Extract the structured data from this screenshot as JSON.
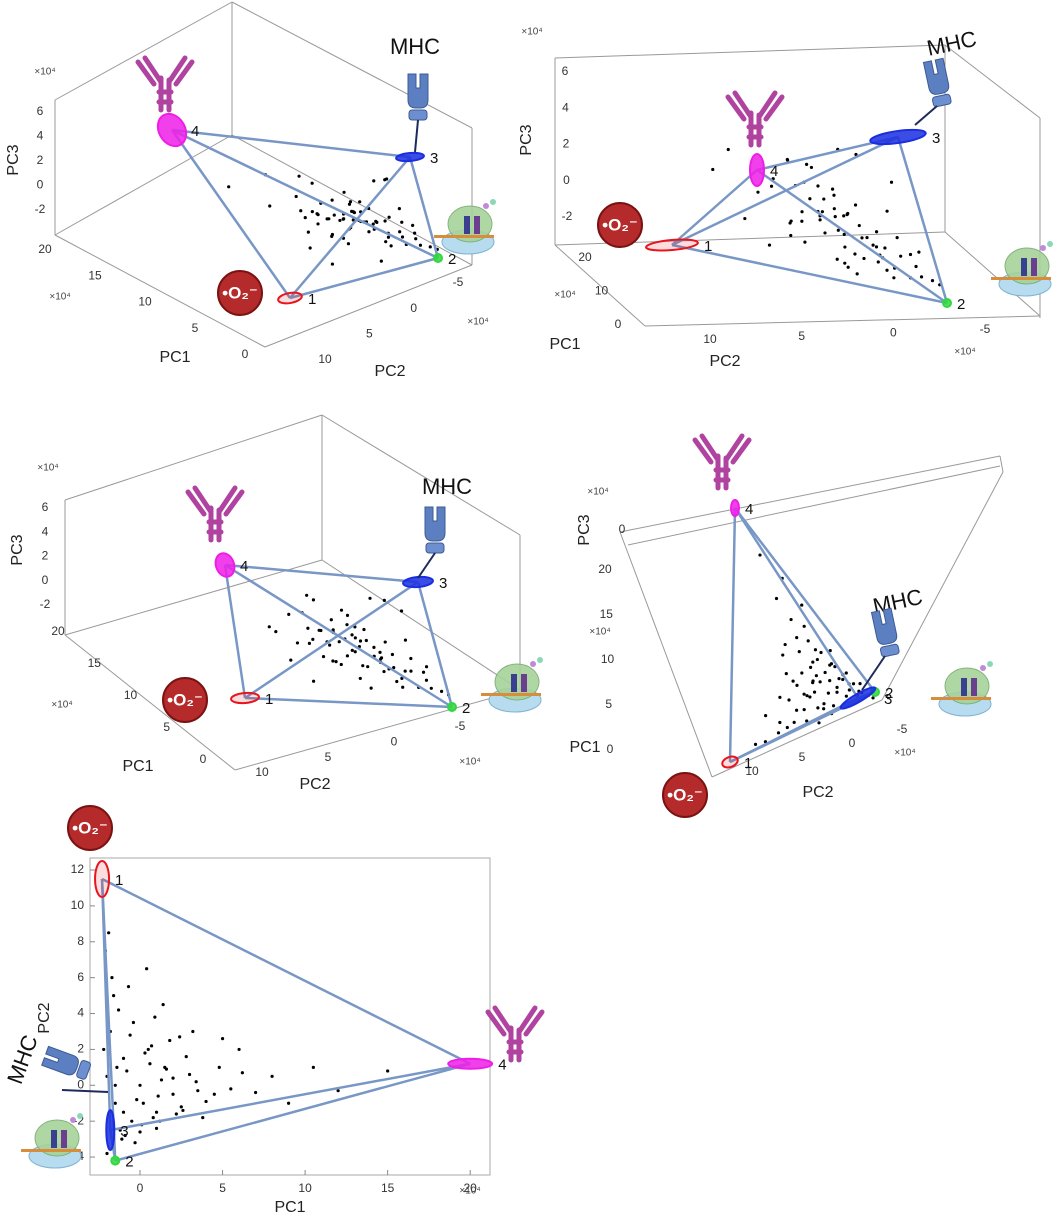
{
  "archetypes": {
    "labels": [
      "1",
      "2",
      "3",
      "4"
    ],
    "colors": [
      "#e8141e",
      "#32d840",
      "#1a2ee0",
      "#ee1ee8"
    ],
    "pc1": [
      -2.3,
      -1.5,
      -1.8,
      20
    ],
    "pc2": [
      11.5,
      -4.2,
      -2.5,
      1.2
    ],
    "pc3": [
      -1,
      -3,
      3,
      4.5
    ]
  },
  "samples": {
    "pc1": [
      -2.0,
      -1.5,
      -1.0,
      -0.5,
      0.0,
      0.5,
      1.0,
      1.5,
      2.0,
      -1.8,
      -1.2,
      -0.8,
      -0.2,
      0.3,
      0.8,
      1.3,
      1.8,
      2.5,
      3.0,
      3.5,
      -1.6,
      -1.1,
      -0.6,
      0.1,
      0.6,
      1.1,
      1.6,
      2.2,
      2.8,
      3.4,
      4.0,
      4.8,
      5.5,
      6.2,
      7.0,
      -2.1,
      -1.7,
      -1.3,
      -0.9,
      -0.4,
      0.2,
      0.7,
      1.2,
      2.0,
      2.6,
      -1.9,
      -1.4,
      -0.7,
      0.4,
      1.4,
      3.2,
      4.5,
      6.0,
      8.0,
      9.0,
      10.5,
      12.0,
      15.0,
      -2.2,
      -1.6,
      -1.0,
      0.0,
      1.0,
      2.4,
      -2.0,
      -1.5,
      -0.3,
      0.9,
      5.0,
      3.8
    ],
    "pc2": [
      0.5,
      -1.0,
      1.5,
      -2.0,
      0.0,
      2.0,
      -1.5,
      1.0,
      -0.5,
      3.0,
      -2.5,
      0.8,
      -0.8,
      1.8,
      -1.8,
      0.3,
      2.5,
      -1.2,
      0.6,
      -0.3,
      5.0,
      -3.0,
      2.8,
      -2.2,
      1.2,
      -0.6,
      0.9,
      -1.6,
      1.6,
      0.2,
      -0.9,
      1.0,
      -0.2,
      0.7,
      -0.4,
      7.5,
      6.0,
      4.2,
      -2.8,
      3.5,
      -1.0,
      2.2,
      -2.0,
      0.4,
      -1.4,
      8.5,
      1.0,
      5.5,
      6.5,
      4.5,
      3.0,
      -0.5,
      2.0,
      0.5,
      -1.0,
      1.0,
      -0.3,
      0.8,
      2.0,
      -3.5,
      -1.5,
      -2.6,
      -2.4,
      2.7,
      -3.8,
      0.0,
      -3.2,
      3.8,
      2.6,
      -1.8
    ],
    "pc3": [
      0.5,
      -1.0,
      1.2,
      -0.5,
      0.0,
      1.5,
      -1.5,
      0.8,
      -0.2,
      2.0,
      -1.2,
      0.3,
      -0.8,
      1.0,
      -1.8,
      0.6,
      1.8,
      -0.4,
      0.2,
      -0.6,
      1.5,
      -2.0,
      0.9,
      -1.1,
      0.4,
      -0.3,
      1.3,
      -0.9,
      0.7,
      0.1,
      -0.7,
      1.1,
      -0.1,
      0.5,
      -0.5,
      2.5,
      1.0,
      0.0,
      -1.6,
      1.4,
      -0.2,
      2.2,
      -1.4,
      0.6,
      -1.0,
      1.8,
      2.6,
      -0.8,
      0.3,
      1.6,
      2.8,
      -1.2,
      0.9,
      1.2,
      -0.4,
      0.7,
      2.0,
      1.5,
      -1.5,
      -2.2,
      0.4,
      -1.9,
      1.7,
      0.8,
      -2.4,
      2.4,
      -1.0,
      0.2,
      3.0,
      -0.6
    ]
  },
  "chart_data": [
    {
      "type": "scatter3d",
      "xlabel": "PC1",
      "ylabel": "PC2",
      "zlabel": "PC3",
      "xticks": [
        0,
        5,
        10,
        15,
        20
      ],
      "yticks": [
        -5,
        0,
        5,
        10
      ],
      "zticks": [
        -2,
        0,
        2,
        4,
        6
      ],
      "x_exponent": "×10⁴",
      "y_exponent": "×10⁴",
      "z_exponent": "×10⁴",
      "mhc_label": "MHC",
      "radical_label": "•O₂⁻"
    },
    {
      "type": "scatter3d",
      "xlabel": "PC1",
      "ylabel": "PC2",
      "zlabel": "PC3",
      "xticks": [
        0,
        10,
        20
      ],
      "yticks": [
        -5,
        0,
        5,
        10
      ],
      "zticks": [
        -2,
        0,
        2,
        4,
        6
      ],
      "x_exponent": "×10⁴",
      "y_exponent": "×10⁴",
      "z_exponent": "×10⁴",
      "mhc_label": "MHC",
      "radical_label": "•O₂⁻"
    },
    {
      "type": "scatter3d",
      "xlabel": "PC1",
      "ylabel": "PC2",
      "zlabel": "PC3",
      "xticks": [
        0,
        5,
        10,
        15,
        20
      ],
      "yticks": [
        -5,
        0,
        5,
        10
      ],
      "zticks": [
        -2,
        0,
        2,
        4,
        6
      ],
      "x_exponent": "×10⁴",
      "y_exponent": "×10⁴",
      "z_exponent": "×10⁴",
      "mhc_label": "MHC",
      "radical_label": "•O₂⁻"
    },
    {
      "type": "scatter3d",
      "xlabel": "PC1",
      "ylabel": "PC2",
      "zlabel": "PC3",
      "xticks": [
        0,
        5,
        10,
        15,
        20
      ],
      "yticks": [
        -5,
        0,
        5,
        10
      ],
      "zticks": [
        0
      ],
      "x_exponent": "×10⁴",
      "y_exponent": "×10⁴",
      "z_exponent": "×10⁴",
      "mhc_label": "MHC",
      "radical_label": "•O₂⁻"
    },
    {
      "type": "scatter",
      "xlabel": "PC1",
      "ylabel": "PC2",
      "xlim": [
        -3.03,
        21.2
      ],
      "ylim": [
        -5,
        12.67
      ],
      "xticks": [
        0,
        5,
        10,
        15,
        20
      ],
      "yticks": [
        -4,
        -2,
        0,
        2,
        4,
        6,
        8,
        10,
        12
      ],
      "x_exponent": "×10⁴",
      "mhc_label": "MHC",
      "radical_label": "•O₂⁻"
    }
  ]
}
